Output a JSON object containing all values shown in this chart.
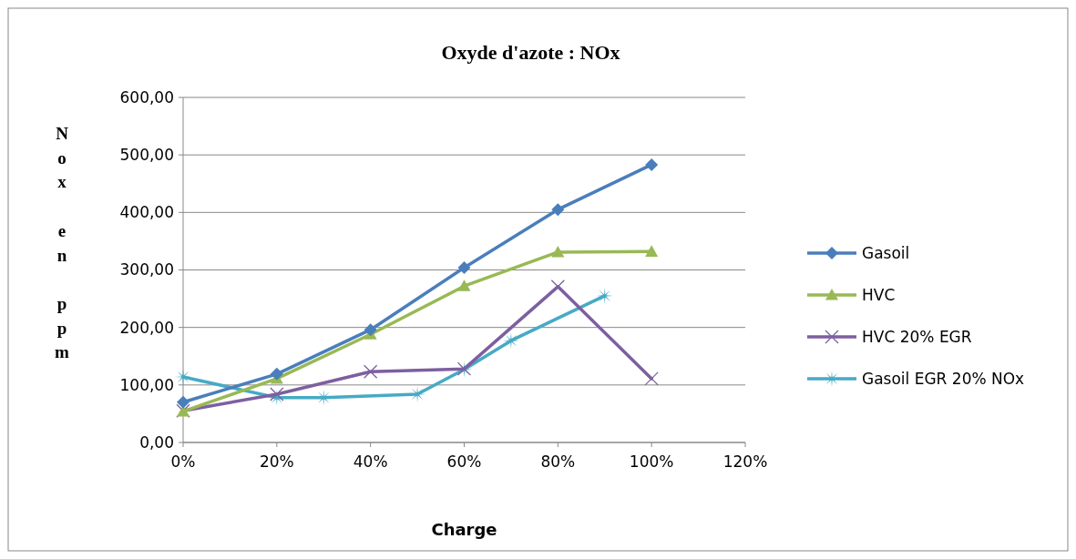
{
  "chart_data": {
    "type": "line",
    "title": "Oxyde d'azote : NOx",
    "xlabel": "Charge",
    "ylabel": "Nox en ppm",
    "xlim": [
      0,
      1.2
    ],
    "xticks": [
      {
        "value": 0,
        "label": "0%"
      },
      {
        "value": 0.2,
        "label": "20%"
      },
      {
        "value": 0.4,
        "label": "40%"
      },
      {
        "value": 0.6,
        "label": "60%"
      },
      {
        "value": 0.8,
        "label": "80%"
      },
      {
        "value": 1,
        "label": "100%"
      },
      {
        "value": 1.2,
        "label": "120%"
      }
    ],
    "ylim": [
      0,
      600
    ],
    "yticks": [
      {
        "value": 0,
        "label": "0,00"
      },
      {
        "value": 100,
        "label": "100,00"
      },
      {
        "value": 200,
        "label": "200,00"
      },
      {
        "value": 300,
        "label": "300,00"
      },
      {
        "value": 400,
        "label": "400,00"
      },
      {
        "value": 500,
        "label": "500,00"
      },
      {
        "value": 600,
        "label": "600,00"
      }
    ],
    "grid": "y",
    "legend": "right",
    "series": [
      {
        "name": "Gasoil",
        "color": "#4a7ebb",
        "marker": "diamond",
        "x": [
          0,
          0.2,
          0.4,
          0.6,
          0.8,
          1
        ],
        "values": [
          70,
          119,
          196,
          304,
          405,
          483
        ]
      },
      {
        "name": "HVC",
        "color": "#98b954",
        "marker": "triangle",
        "x": [
          0,
          0.2,
          0.4,
          0.6,
          0.8,
          1
        ],
        "values": [
          54,
          111,
          188,
          272,
          331,
          332
        ]
      },
      {
        "name": "HVC 20% EGR",
        "color": "#7d5fa0",
        "marker": "cross",
        "x": [
          0,
          0.2,
          0.4,
          0.6,
          0.8,
          1
        ],
        "values": [
          55,
          84,
          123,
          128,
          271,
          111
        ]
      },
      {
        "name": "Gasoil EGR 20% NOx",
        "color": "#46aac5",
        "marker": "star",
        "x": [
          0,
          0.2,
          0.3,
          0.5,
          0.6,
          0.7,
          0.9
        ],
        "values": [
          114,
          78,
          78,
          84,
          127,
          177,
          255
        ]
      }
    ]
  }
}
